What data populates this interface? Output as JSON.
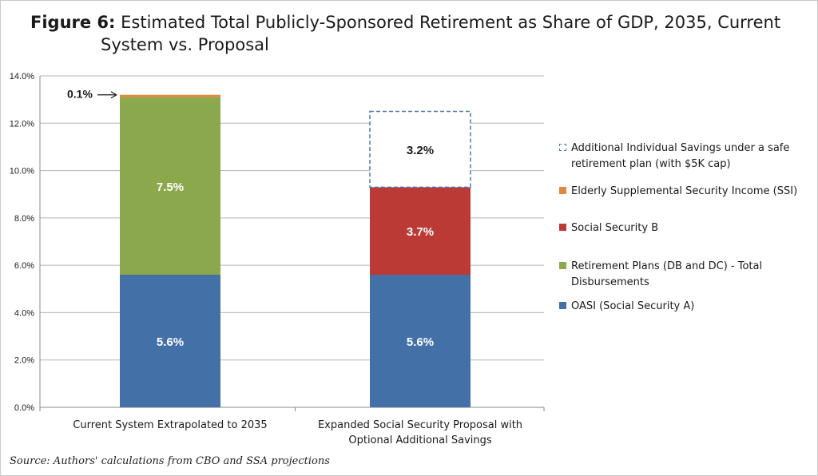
{
  "title": {
    "lead": "Figure 6:",
    "line1": "Estimated Total Publicly-Sponsored Retirement as Share of GDP, 2035, Current",
    "line2": "System vs. Proposal"
  },
  "source": "Source: Authors' calculations from CBO and SSA projections",
  "chart_data": {
    "type": "bar",
    "stacked": true,
    "title": "Estimated Total Publicly-Sponsored Retirement as Share of GDP, 2035, Current System vs. Proposal",
    "categories": [
      "Current System Extrapolated to 2035",
      "Expanded Social Security Proposal with Optional Additional Savings"
    ],
    "category_lines": [
      [
        "Current System Extrapolated to 2035"
      ],
      [
        "Expanded Social Security Proposal with",
        "Optional Additional Savings"
      ]
    ],
    "ylim": [
      0,
      14
    ],
    "yticks": [
      0,
      2,
      4,
      6,
      8,
      10,
      12,
      14
    ],
    "ytick_labels": [
      "0.0%",
      "2.0%",
      "4.0%",
      "6.0%",
      "8.0%",
      "10.0%",
      "12.0%",
      "14.0%"
    ],
    "grid": true,
    "legend_position": "right",
    "series": [
      {
        "name": "OASI (Social Security A)",
        "color": "#4470a8",
        "values": [
          5.6,
          5.6
        ],
        "labels": [
          "5.6%",
          "5.6%"
        ]
      },
      {
        "name": "Retirement Plans (DB and DC) - Total Disbursements",
        "color": "#8ca84c",
        "values": [
          7.5,
          0
        ],
        "labels": [
          "7.5%",
          ""
        ]
      },
      {
        "name": "Social Security B",
        "color": "#bb3a36",
        "values": [
          0,
          3.7
        ],
        "labels": [
          "",
          "3.7%"
        ]
      },
      {
        "name": "Elderly Supplemental Security Income (SSI)",
        "color": "#e08a40",
        "values": [
          0.1,
          0
        ],
        "labels": [
          "0.1%",
          ""
        ]
      },
      {
        "name": "Additional Individual Savings under a safe retirement plan (with $5K cap)",
        "color": "#4a7ab5",
        "style": "dashed",
        "values": [
          0,
          3.2
        ],
        "labels": [
          "",
          "3.2%"
        ]
      }
    ],
    "legend_order": [
      {
        "lines": [
          "Additional Individual Savings under a safe",
          "retirement plan (with $5K cap)"
        ],
        "color": "#4a7ab5",
        "style": "dashed"
      },
      {
        "lines": [
          "Elderly Supplemental Security Income (SSI)"
        ],
        "color": "#e08a40"
      },
      {
        "lines": [
          "Social Security B"
        ],
        "color": "#bb3a36"
      },
      {
        "lines": [
          "Retirement Plans (DB and DC) - Total",
          "Disbursements"
        ],
        "color": "#8ca84c"
      },
      {
        "lines": [
          "OASI (Social Security A)"
        ],
        "color": "#4470a8"
      }
    ],
    "annotations": [
      {
        "text": "0.1%",
        "category": 0,
        "points_to": "Elderly Supplemental Security Income (SSI)"
      }
    ]
  }
}
